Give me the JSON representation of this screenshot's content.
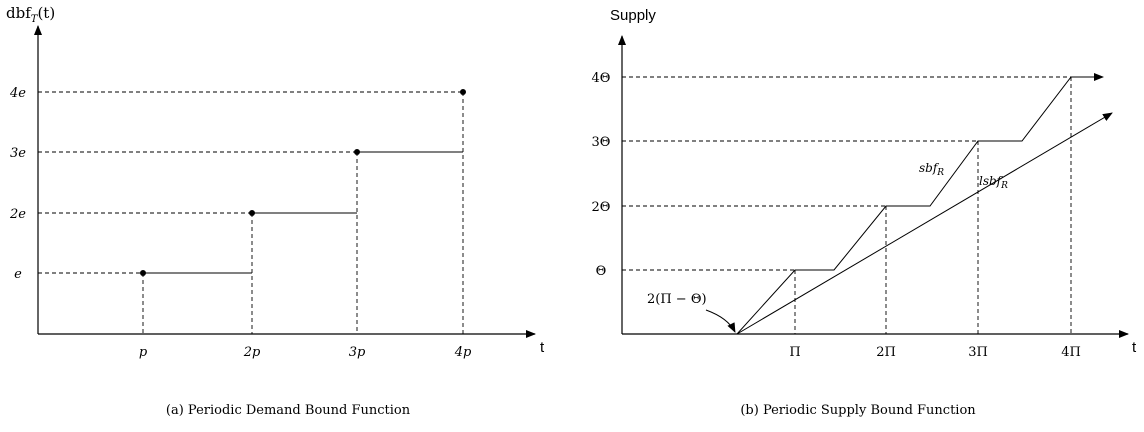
{
  "left": {
    "y_title_base": "dbf",
    "y_title_sub": "T",
    "y_title_arg": "(t)",
    "x_title": "t",
    "y_ticks": [
      "e",
      "2e",
      "3e",
      "4e"
    ],
    "x_ticks": [
      "p",
      "2p",
      "3p",
      "4p"
    ],
    "caption": "(a)  Periodic Demand Bound Function"
  },
  "right": {
    "y_title": "Supply",
    "x_title": "t",
    "y_ticks": [
      "Θ",
      "2Θ",
      "3Θ",
      "4Θ"
    ],
    "x_ticks": [
      "Π",
      "2Π",
      "3Π",
      "4Π"
    ],
    "annotation": "2(Π − Θ)",
    "sbf_base": "sbf",
    "sbf_sub": "R",
    "lsbf_base": "lsbf",
    "lsbf_sub": "R",
    "caption": "(b)  Periodic Supply Bound Function"
  }
}
